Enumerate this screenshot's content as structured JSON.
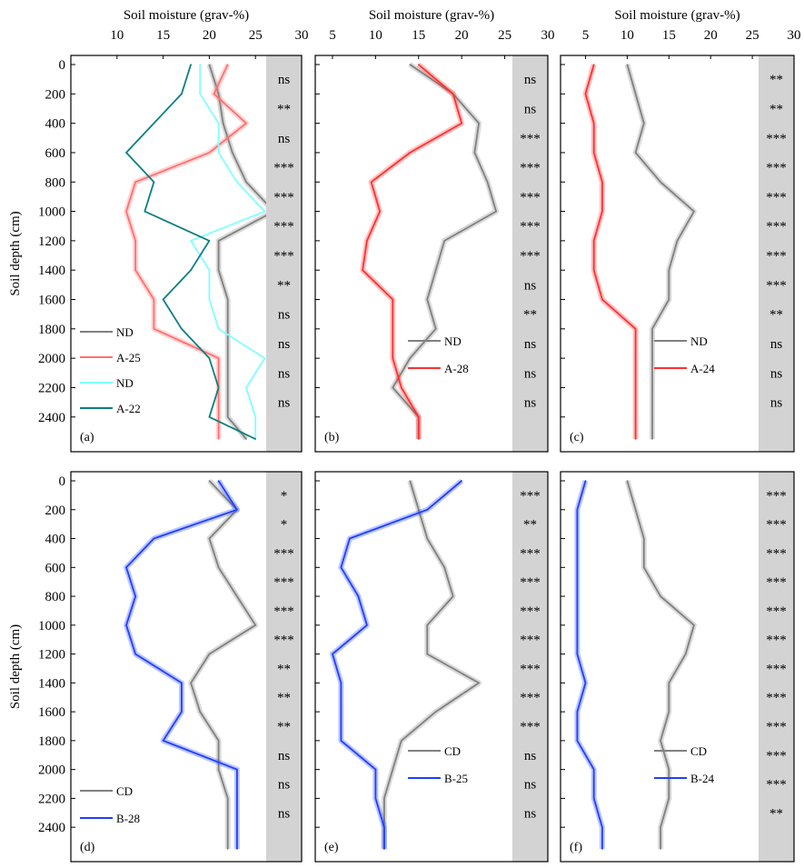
{
  "chart_data": [
    {
      "type": "line",
      "panel": "(a)",
      "title": "",
      "xlabel": "Soil moisture (grav-%)",
      "ylabel": "Soil depth (cm)",
      "xlim": [
        5,
        30
      ],
      "xticks": [
        10,
        15,
        20,
        25,
        30
      ],
      "ylim": [
        0,
        2550
      ],
      "yticks": [
        0,
        200,
        400,
        600,
        800,
        1000,
        1200,
        1400,
        1600,
        1800,
        2000,
        2200,
        2400
      ],
      "y_inverted": true,
      "depth": [
        0,
        200,
        400,
        600,
        800,
        1000,
        1200,
        1400,
        1600,
        1800,
        2000,
        2200,
        2400,
        2550
      ],
      "series": [
        {
          "name": "ND",
          "color": "#808080",
          "band": true,
          "values": [
            20,
            21,
            21.5,
            22.5,
            24,
            27,
            21,
            21,
            22,
            22,
            22,
            22,
            22,
            24
          ]
        },
        {
          "name": "A-25",
          "color": "#ff7070",
          "band": true,
          "values": [
            22,
            20.5,
            24,
            20,
            12,
            11,
            12,
            12,
            14,
            14,
            21,
            21,
            21,
            21
          ]
        },
        {
          "name": "ND",
          "color": "#80ffff",
          "band": false,
          "values": [
            19,
            19,
            21,
            21,
            23,
            26,
            18,
            20,
            20,
            21,
            26,
            24,
            25,
            25
          ]
        },
        {
          "name": "A-22",
          "color": "#0d7f7f",
          "band": false,
          "values": [
            18,
            17,
            14,
            11,
            14,
            13,
            20,
            18,
            15,
            17,
            20,
            21,
            20,
            25
          ]
        }
      ],
      "significance": [
        "ns",
        "**",
        "ns",
        "***",
        "***",
        "***",
        "***",
        "**",
        "ns",
        "ns",
        "ns",
        "ns"
      ],
      "legend_position": "bottom-left"
    },
    {
      "type": "line",
      "panel": "(b)",
      "title": "",
      "xlabel": "Soil moisture (grav-%)",
      "ylabel": "",
      "xlim": [
        3,
        30
      ],
      "xticks": [
        5,
        10,
        15,
        20,
        25,
        30
      ],
      "ylim": [
        0,
        2550
      ],
      "yticks": [
        0,
        200,
        400,
        600,
        800,
        1000,
        1200,
        1400,
        1600,
        1800,
        2000,
        2200,
        2400
      ],
      "y_inverted": true,
      "depth": [
        0,
        200,
        400,
        600,
        800,
        1000,
        1200,
        1400,
        1600,
        1800,
        2000,
        2200,
        2400,
        2550
      ],
      "series": [
        {
          "name": "ND",
          "color": "#808080",
          "band": true,
          "values": [
            14,
            19,
            22,
            21.5,
            23,
            24,
            18,
            17,
            16,
            17,
            14,
            12,
            15,
            15
          ]
        },
        {
          "name": "A-28",
          "color": "#ff3030",
          "band": true,
          "values": [
            15,
            19,
            20,
            14,
            9.5,
            10.5,
            9,
            8.5,
            12,
            12,
            12,
            13,
            15,
            15
          ]
        }
      ],
      "significance": [
        "ns",
        "ns",
        "***",
        "***",
        "***",
        "***",
        "***",
        "ns",
        "**",
        "ns",
        "ns",
        "ns"
      ],
      "legend_position": "bottom-right"
    },
    {
      "type": "line",
      "panel": "(c)",
      "title": "",
      "xlabel": "Soil moisture (grav-%)",
      "ylabel": "",
      "xlim": [
        2,
        30
      ],
      "xticks": [
        5,
        10,
        15,
        20,
        25,
        30
      ],
      "ylim": [
        0,
        2550
      ],
      "yticks": [
        0,
        200,
        400,
        600,
        800,
        1000,
        1200,
        1400,
        1600,
        1800,
        2000,
        2200,
        2400
      ],
      "y_inverted": true,
      "depth": [
        0,
        200,
        400,
        600,
        800,
        1000,
        1200,
        1400,
        1600,
        1800,
        2000,
        2200,
        2400,
        2550
      ],
      "series": [
        {
          "name": "ND",
          "color": "#808080",
          "band": true,
          "values": [
            10,
            11,
            12,
            11,
            14,
            18,
            16,
            15,
            15,
            13,
            13,
            13,
            13,
            13
          ]
        },
        {
          "name": "A-24",
          "color": "#ff3030",
          "band": true,
          "values": [
            6,
            5,
            6,
            6,
            7,
            7,
            6,
            6,
            7,
            11,
            11,
            11,
            11,
            11
          ]
        }
      ],
      "significance": [
        "**",
        "**",
        "***",
        "***",
        "***",
        "***",
        "***",
        "***",
        "**",
        "ns",
        "ns",
        "ns"
      ],
      "legend_position": "bottom-right"
    },
    {
      "type": "line",
      "panel": "(d)",
      "title": "",
      "xlabel": "",
      "ylabel": "Soil depth (cm)",
      "xlim": [
        5,
        30
      ],
      "ylim": [
        0,
        2550
      ],
      "yticks": [
        0,
        200,
        400,
        600,
        800,
        1000,
        1200,
        1400,
        1600,
        1800,
        2000,
        2200,
        2400
      ],
      "y_inverted": true,
      "depth": [
        0,
        200,
        400,
        600,
        800,
        1000,
        1200,
        1400,
        1600,
        1800,
        2000,
        2200,
        2400,
        2550
      ],
      "series": [
        {
          "name": "CD",
          "color": "#808080",
          "band": true,
          "values": [
            20,
            23,
            20,
            21,
            23,
            25,
            20,
            18,
            19,
            21,
            21,
            22,
            22,
            22
          ]
        },
        {
          "name": "B-28",
          "color": "#1f3fff",
          "band": true,
          "values": [
            21,
            23,
            14,
            11,
            12,
            11,
            12,
            17,
            17,
            15,
            23,
            23,
            23,
            23
          ]
        }
      ],
      "significance": [
        "*",
        "*",
        "***",
        "***",
        "***",
        "***",
        "**",
        "**",
        "**",
        "ns",
        "ns",
        "ns"
      ],
      "legend_position": "bottom-left"
    },
    {
      "type": "line",
      "panel": "(e)",
      "title": "",
      "xlabel": "",
      "ylabel": "",
      "xlim": [
        3,
        30
      ],
      "ylim": [
        0,
        2550
      ],
      "yticks": [
        0,
        200,
        400,
        600,
        800,
        1000,
        1200,
        1400,
        1600,
        1800,
        2000,
        2200,
        2400
      ],
      "y_inverted": true,
      "depth": [
        0,
        200,
        400,
        600,
        800,
        1000,
        1200,
        1400,
        1600,
        1800,
        2000,
        2200,
        2400,
        2550
      ],
      "series": [
        {
          "name": "CD",
          "color": "#808080",
          "band": true,
          "values": [
            14,
            15,
            16,
            18,
            19,
            16,
            16,
            22,
            17,
            13,
            12,
            11,
            11,
            11
          ]
        },
        {
          "name": "B-25",
          "color": "#1f3fff",
          "band": true,
          "values": [
            20,
            16,
            7,
            6,
            8,
            9,
            5,
            6,
            6,
            6,
            10,
            10,
            11,
            11
          ]
        }
      ],
      "significance": [
        "***",
        "**",
        "***",
        "***",
        "***",
        "***",
        "***",
        "***",
        "***",
        "ns",
        "ns",
        "ns"
      ],
      "legend_position": "bottom-right"
    },
    {
      "type": "line",
      "panel": "(f)",
      "title": "",
      "xlabel": "",
      "ylabel": "",
      "xlim": [
        2,
        30
      ],
      "ylim": [
        0,
        2550
      ],
      "yticks": [
        0,
        200,
        400,
        600,
        800,
        1000,
        1200,
        1400,
        1600,
        1800,
        2000,
        2200,
        2400
      ],
      "y_inverted": true,
      "depth": [
        0,
        200,
        400,
        600,
        800,
        1000,
        1200,
        1400,
        1600,
        1800,
        2000,
        2200,
        2400,
        2550
      ],
      "series": [
        {
          "name": "CD",
          "color": "#808080",
          "band": true,
          "values": [
            10,
            11,
            12,
            12,
            14,
            18,
            17,
            15,
            15,
            14,
            15,
            15,
            14,
            14
          ]
        },
        {
          "name": "B-24",
          "color": "#1f3fff",
          "band": true,
          "values": [
            5,
            4,
            4,
            4,
            4,
            4,
            4,
            5,
            4,
            4,
            6,
            6,
            7,
            7
          ]
        }
      ],
      "significance": [
        "***",
        "***",
        "***",
        "***",
        "***",
        "***",
        "***",
        "***",
        "***",
        "***",
        "***",
        "**"
      ],
      "legend_position": "bottom-right"
    }
  ]
}
